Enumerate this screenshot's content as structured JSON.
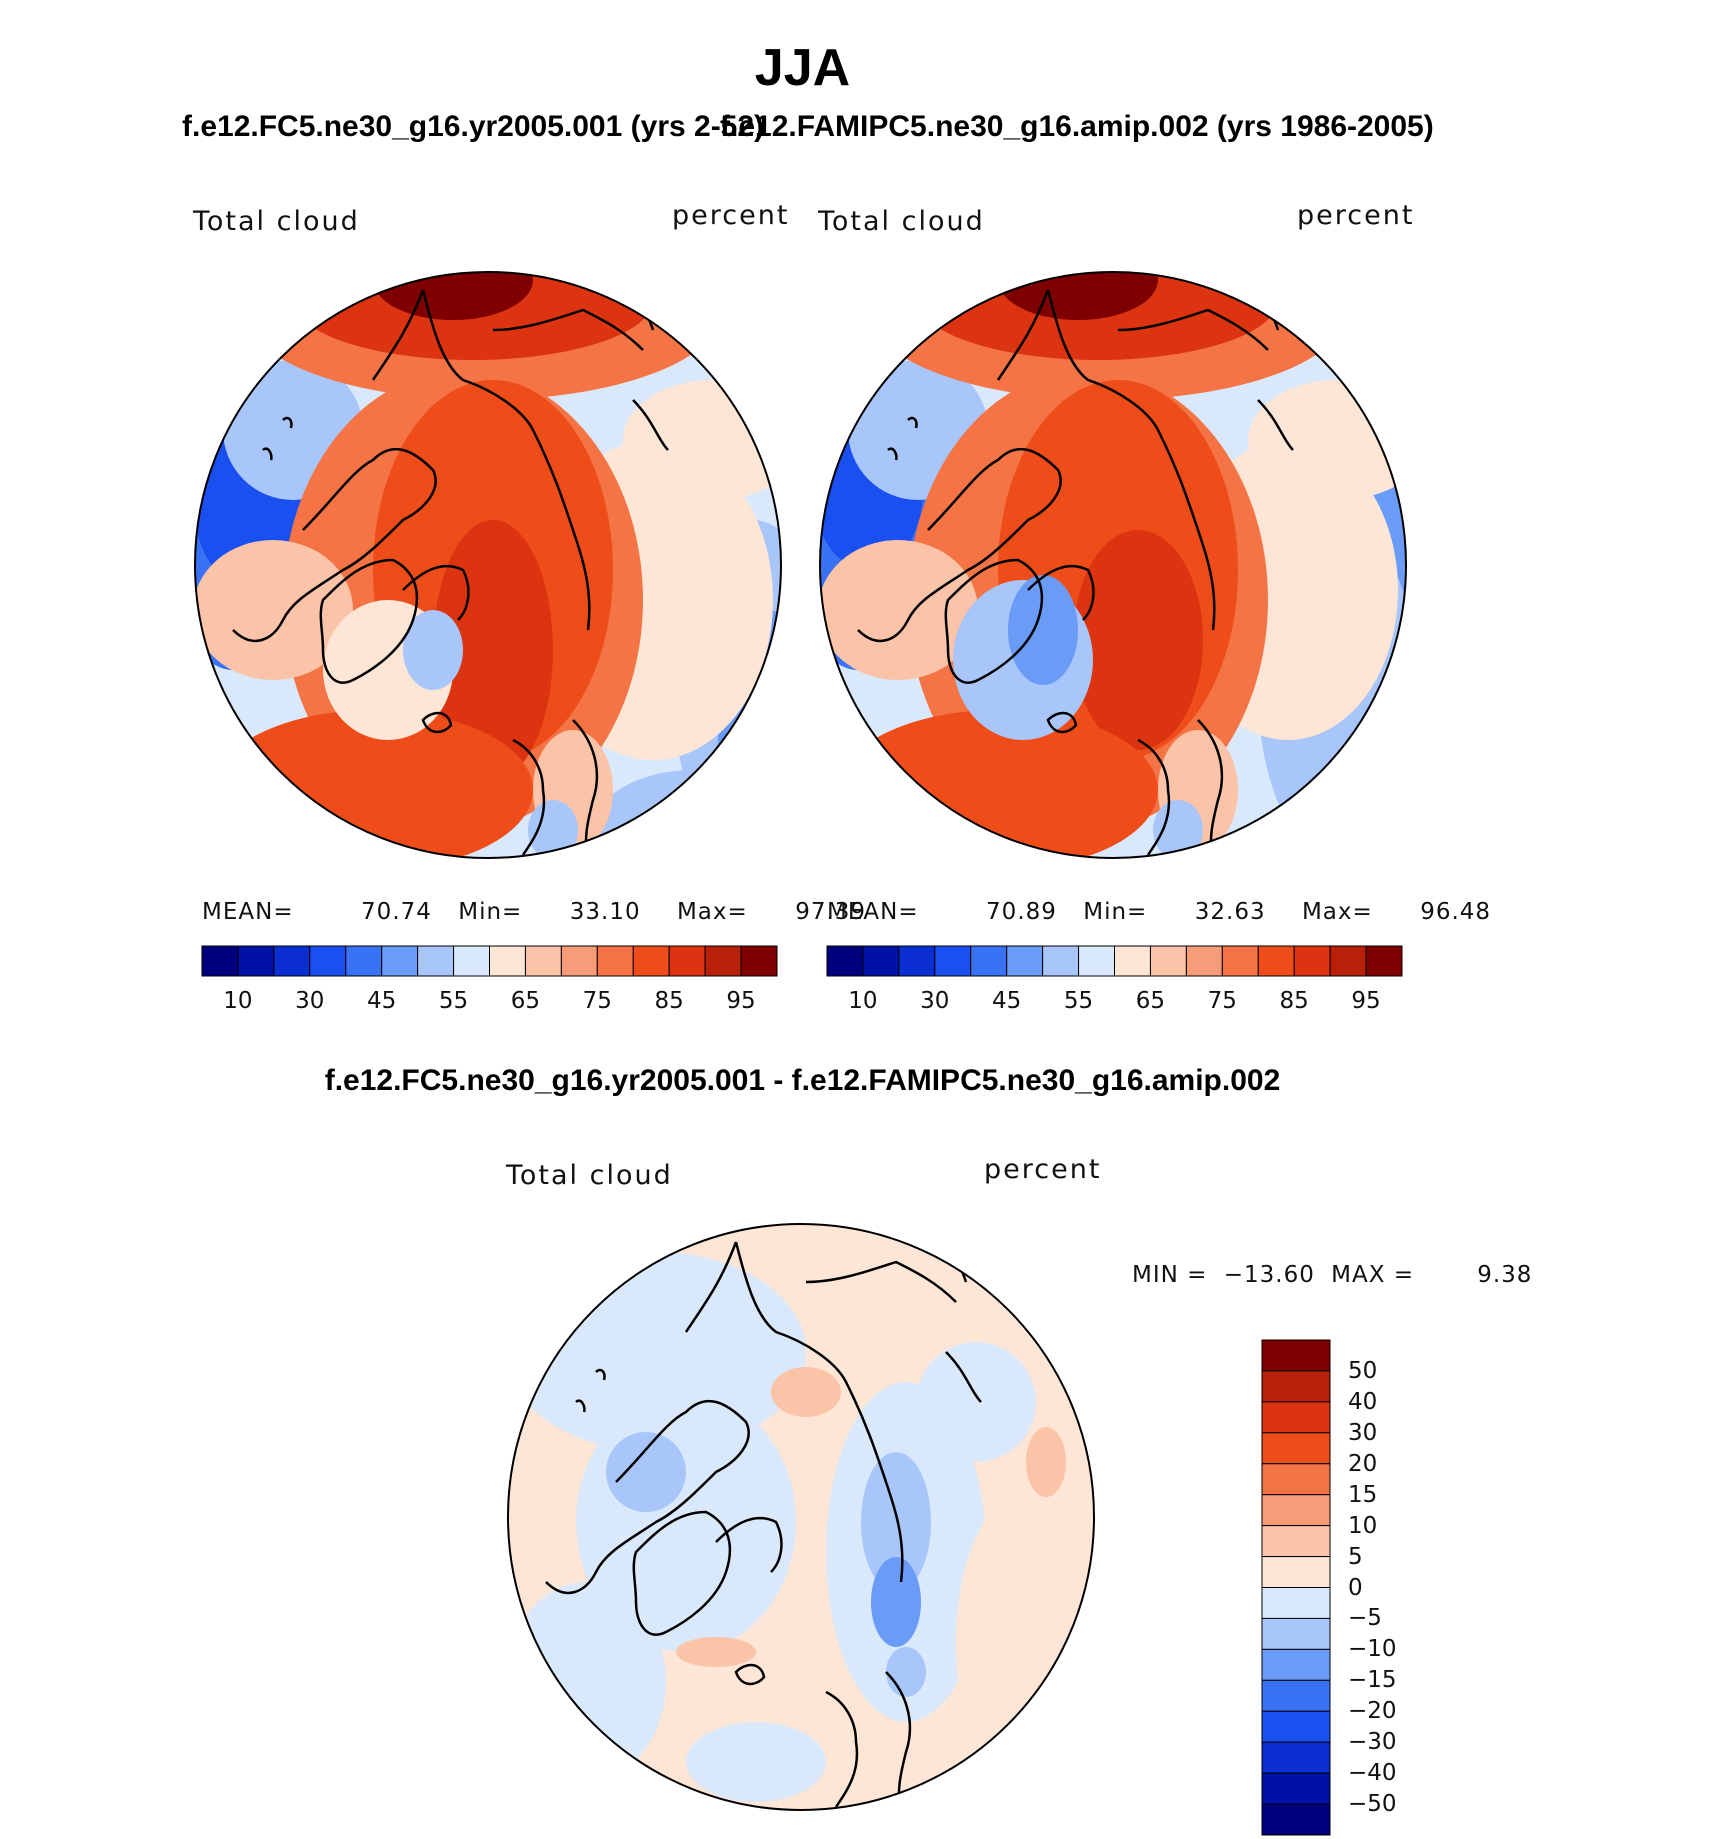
{
  "season": "JJA",
  "panels": [
    {
      "title": "f.e12.FC5.ne30_g16.yr2005.001 (yrs 2-52)",
      "variable": "Total cloud",
      "units": "percent",
      "stats": {
        "mean_label": "MEAN=",
        "mean": "70.74",
        "min_label": "Min=",
        "min": "33.10",
        "max_label": "Max=",
        "max": "97.39"
      }
    },
    {
      "title": "f.e12.FAMIPC5.ne30_g16.amip.002 (yrs 1986-2005)",
      "variable": "Total cloud",
      "units": "percent",
      "stats": {
        "mean_label": "MEAN=",
        "mean": "70.89",
        "min_label": "Min=",
        "min": "32.63",
        "max_label": "Max=",
        "max": "96.48"
      }
    }
  ],
  "colorbar_abs": {
    "colors": [
      "#00007f",
      "#0011a8",
      "#0a2ed0",
      "#1a4ff0",
      "#3a72f5",
      "#6a9cf7",
      "#a8c6f9",
      "#d9e8fb",
      "#fde6d6",
      "#fbc4a8",
      "#f79c78",
      "#f47446",
      "#ee4d1a",
      "#dc3410",
      "#b8200a",
      "#7f0000"
    ],
    "tick_labels": [
      "10",
      "30",
      "45",
      "55",
      "65",
      "75",
      "85",
      "95"
    ]
  },
  "diff": {
    "title": "f.e12.FC5.ne30_g16.yr2005.001 - f.e12.FAMIPC5.ne30_g16.amip.002",
    "variable": "Total cloud",
    "units": "percent",
    "min_label": "MIN =",
    "min": "−13.60",
    "max_label": "MAX =",
    "max": "9.38",
    "colorbar": {
      "colors": [
        "#7f0000",
        "#b8200a",
        "#dc3410",
        "#ee4d1a",
        "#f47446",
        "#f79c78",
        "#fbc4a8",
        "#fde6d6",
        "#d9e8fb",
        "#a8c6f9",
        "#6a9cf7",
        "#3a72f5",
        "#1a4ff0",
        "#0a2ed0",
        "#0011a8",
        "#00007f"
      ],
      "tick_labels": [
        "50",
        "40",
        "30",
        "20",
        "15",
        "10",
        "5",
        "0",
        "−5",
        "−10",
        "−15",
        "−20",
        "−30",
        "−40",
        "−50"
      ]
    }
  },
  "map_colors": {
    "dark_red": "#7f0000",
    "red": "#dc3410",
    "orange_red": "#ee4d1a",
    "orange": "#f47446",
    "peach": "#fbc4a8",
    "cream": "#fde6d6",
    "pale_blue": "#d9e8fb",
    "light_blue": "#a8c6f9",
    "mid_blue": "#6a9cf7",
    "blue": "#3a72f5",
    "deep_blue": "#1a4ff0"
  }
}
